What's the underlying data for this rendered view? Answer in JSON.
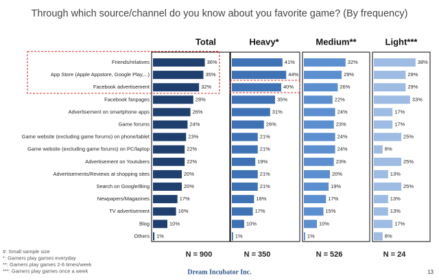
{
  "chart_data": {
    "type": "bar",
    "title": "Through which source/channel do you know about you favorite game? (By frequency)",
    "categories": [
      "Friends/relatives",
      "App Store (Apple Appstore, Google Play,...)",
      "Facebook advertisement",
      "Facebook fanpages",
      "Advertisement on smartphone apps",
      "Game forums",
      "Game website (excluding game forums) on phone/tablet",
      "Game website (excluding game forums) on PC/laptop",
      "Advertisement on Youtubers",
      "Advertisements/Reviews at shopping sites",
      "Search on Google/Bing",
      "Newpapers/Magazines",
      "TV advertisement",
      "Blog",
      "Others"
    ],
    "series": [
      {
        "name": "Total",
        "color": "#1f3f6e",
        "sample": "N = 900",
        "values": [
          36,
          35,
          32,
          28,
          26,
          24,
          23,
          22,
          22,
          20,
          20,
          17,
          16,
          10,
          1
        ],
        "value_labels": [
          "36%",
          "35%",
          "32%",
          "28%",
          "26%",
          "24%",
          "23%",
          "22%",
          "22%",
          "20%",
          "20%",
          "17%",
          "16%",
          "10%",
          "1%"
        ]
      },
      {
        "name": "Heavy*",
        "color": "#3f72b5",
        "sample": "N = 350",
        "values": [
          41,
          44,
          40,
          35,
          31,
          26,
          21,
          21,
          19,
          21,
          21,
          18,
          17,
          10,
          1
        ],
        "value_labels": [
          "41%",
          "44%",
          "40%",
          "35%",
          "31%",
          "26%",
          "21%",
          "21%",
          "19%",
          "21%",
          "21%",
          "18%",
          "17%",
          "10%",
          "1%"
        ]
      },
      {
        "name": "Medium**",
        "color": "#5b8fd0",
        "sample": "N = 526",
        "values": [
          32,
          29,
          26,
          22,
          24,
          23,
          24,
          24,
          23,
          20,
          19,
          17,
          15,
          10,
          1
        ],
        "value_labels": [
          "32%",
          "29%",
          "26%",
          "22%",
          "24%",
          "23%",
          "24%",
          "24%",
          "23%",
          "20%",
          "19%",
          "17%",
          "15%",
          "10%",
          "1%"
        ]
      },
      {
        "name": "Light***",
        "color": "#9dbbe3",
        "sample": "N = 24",
        "values": [
          38,
          29,
          29,
          33,
          17,
          17,
          25,
          8,
          25,
          13,
          25,
          13,
          13,
          17,
          8
        ],
        "value_labels": [
          "38%",
          "29%",
          "29%",
          "33%",
          "17%",
          "17%",
          "25%",
          "8%",
          "25%",
          "13%",
          "25%",
          "13%",
          "13%",
          "17%",
          "8%"
        ]
      }
    ],
    "footnotes": [
      "#: Small sample size",
      "*: Gamers play games everyday",
      "**: Gamers play games 2-6 times/week",
      "***: Gamers play games once a week"
    ],
    "footer": "Dream Incubator Inc.",
    "page_number": "13"
  }
}
